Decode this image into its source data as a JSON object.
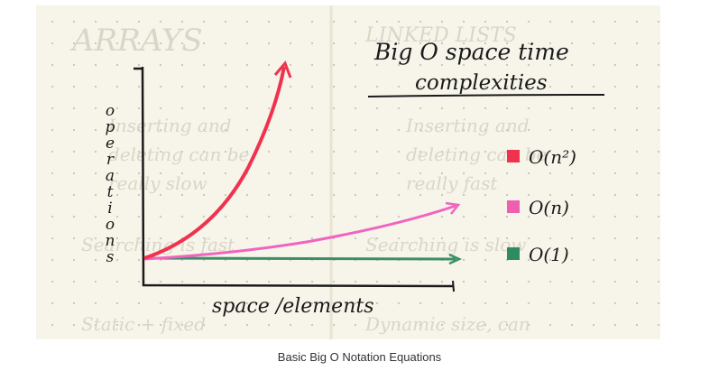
{
  "diagram": {
    "title_line1": "Big O space time",
    "title_line2": "complexities",
    "y_axis_letters": [
      "o",
      "p",
      "e",
      "r",
      "a",
      "t",
      "i",
      "o",
      "n",
      "s"
    ],
    "x_axis_label": "space /elements",
    "legend": [
      {
        "label": "O(n²)",
        "color": "#f0324e"
      },
      {
        "label": "O(n)",
        "color": "#ef5fb0"
      },
      {
        "label": "O(1)",
        "color": "#2e8c64"
      }
    ],
    "curve_colors": {
      "quadratic": "#f0324e",
      "linear": "#f064c0",
      "constant": "#3a8f68"
    },
    "background_notes": {
      "left_title": "ARRAYS",
      "right_title": "LINKED LISTS",
      "left_items": [
        "Inserting and",
        "deleting can be",
        "really slow",
        "Searching is fast",
        "Static + fixed"
      ],
      "right_items": [
        "Inserting and",
        "deleting can be",
        "really fast",
        "Searching is slow",
        "Dynamic size, can"
      ]
    }
  },
  "caption": "Basic Big O Notation Equations"
}
